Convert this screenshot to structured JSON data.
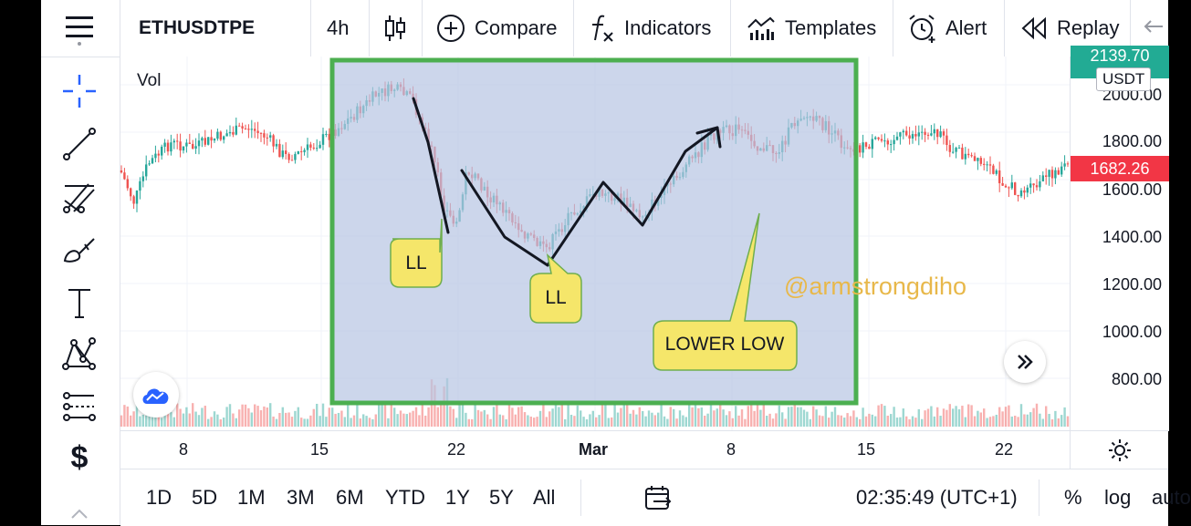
{
  "toolbar": {
    "symbol": "ETHUSDTPE",
    "interval": "4h",
    "compare": "Compare",
    "indicators": "Indicators",
    "templates": "Templates",
    "alert": "Alert",
    "replay": "Replay"
  },
  "left_tools": [
    "menu-icon",
    "crosshair-icon",
    "trend-line-icon",
    "pitchfork-icon",
    "brush-icon",
    "text-icon",
    "pattern-icon",
    "prediction-icon",
    "dollar-icon"
  ],
  "chart": {
    "volume_label": "Vol",
    "watermark": "@armstrongdiho",
    "callouts": {
      "ll_1": "LL",
      "ll_2": "LL",
      "lower_low": "LOWER LOW"
    },
    "colors": {
      "up": "#26a69a",
      "down": "#ef5350",
      "highlight_box": "#4caf50",
      "highlight_fill": "#b6c4e2",
      "callout": "#f5e66a",
      "watermark": "#e8b84a"
    }
  },
  "price_scale": {
    "labels": [
      "1800.00",
      "1600.00",
      "1400.00",
      "1200.00",
      "1000.00",
      "800.00"
    ],
    "last_price": "1682.26",
    "top_partial": "2139.70",
    "top_partial_2": "2000.00",
    "currency": "USDT"
  },
  "time_scale": {
    "labels": [
      "8",
      "15",
      "22",
      "Mar",
      "8",
      "15",
      "22"
    ]
  },
  "bottom_bar": {
    "ranges": [
      "1D",
      "5D",
      "1M",
      "3M",
      "6M",
      "YTD",
      "1Y",
      "5Y",
      "All"
    ],
    "time": "02:35:49 (UTC+1)",
    "percent": "%",
    "log": "log",
    "auto": "auto"
  }
}
